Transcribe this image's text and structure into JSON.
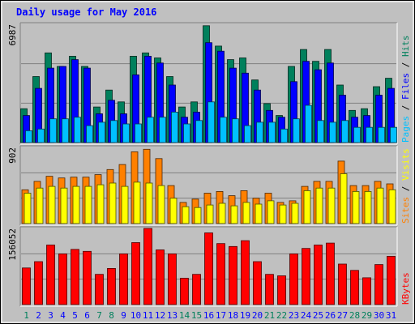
{
  "chart_data": {
    "type": "bar",
    "title": "Daily usage for May 2016",
    "title_color": "#0000ff",
    "colors": {
      "hits": "#00805c",
      "files": "#0000ff",
      "pages": "#00c0ff",
      "visits": "#ff8000",
      "sites": "#ffff00",
      "kbytes": "#ff0000",
      "weekend_label": "#00805c",
      "weekday_label": "#0000ff"
    },
    "days": [
      {
        "label": "1",
        "weekend": true
      },
      {
        "label": "2",
        "weekend": false
      },
      {
        "label": "3",
        "weekend": false
      },
      {
        "label": "4",
        "weekend": false
      },
      {
        "label": "5",
        "weekend": false
      },
      {
        "label": "6",
        "weekend": false
      },
      {
        "label": "7",
        "weekend": true
      },
      {
        "label": "8",
        "weekend": true
      },
      {
        "label": "9",
        "weekend": false
      },
      {
        "label": "10",
        "weekend": false
      },
      {
        "label": "11",
        "weekend": false
      },
      {
        "label": "12",
        "weekend": false
      },
      {
        "label": "13",
        "weekend": false
      },
      {
        "label": "14",
        "weekend": true
      },
      {
        "label": "15",
        "weekend": true
      },
      {
        "label": "16",
        "weekend": false
      },
      {
        "label": "17",
        "weekend": false
      },
      {
        "label": "18",
        "weekend": false
      },
      {
        "label": "19",
        "weekend": false
      },
      {
        "label": "20",
        "weekend": false
      },
      {
        "label": "21",
        "weekend": true
      },
      {
        "label": "22",
        "weekend": true
      },
      {
        "label": "23",
        "weekend": false
      },
      {
        "label": "24",
        "weekend": false
      },
      {
        "label": "25",
        "weekend": false
      },
      {
        "label": "26",
        "weekend": false
      },
      {
        "label": "27",
        "weekend": false
      },
      {
        "label": "28",
        "weekend": true
      },
      {
        "label": "29",
        "weekend": true
      },
      {
        "label": "30",
        "weekend": false
      },
      {
        "label": "31",
        "weekend": false
      }
    ],
    "panels": [
      {
        "id": "hits-files-pages",
        "max_label": "6987",
        "ymax": 6987,
        "legend": [
          "Pages",
          "Files",
          "Hits"
        ],
        "legend_keys": [
          "pages",
          "files",
          "hits"
        ],
        "series": [
          {
            "key": "hits",
            "values": [
              2000,
              3900,
              5300,
              4500,
              5100,
              4500,
              2100,
              3100,
              2400,
              5100,
              5300,
              5000,
              3900,
              2100,
              2400,
              6900,
              5700,
              4900,
              5000,
              3700,
              2300,
              1600,
              4500,
              5500,
              4800,
              5500,
              3400,
              1900,
              2000,
              3300,
              3800
            ]
          },
          {
            "key": "files",
            "values": [
              1600,
              3200,
              4400,
              4500,
              4900,
              4400,
              1700,
              2500,
              1700,
              4000,
              5100,
              4700,
              3400,
              1500,
              1800,
              5900,
              5400,
              4400,
              4100,
              3100,
              1900,
              1500,
              3600,
              4800,
              4300,
              4700,
              2800,
              1500,
              1600,
              2800,
              3200
            ]
          },
          {
            "key": "pages",
            "values": [
              700,
              800,
              1400,
              1400,
              1500,
              1000,
              1200,
              1300,
              1100,
              1100,
              1500,
              1500,
              1800,
              1100,
              1300,
              2400,
              1500,
              1400,
              1000,
              1200,
              1200,
              800,
              1400,
              2200,
              1300,
              1200,
              1300,
              900,
              900,
              900,
              900
            ]
          }
        ]
      },
      {
        "id": "visits-sites",
        "max_label": "902",
        "ymax": 902,
        "legend": [
          "Sites",
          "/",
          "Visits"
        ],
        "legend_keys": [
          "visits",
          "",
          "sites"
        ],
        "series": [
          {
            "key": "visits",
            "values": [
              400,
              500,
              560,
              540,
              550,
              550,
              580,
              640,
              700,
              850,
              880,
              770,
              450,
              250,
              290,
              360,
              380,
              330,
              390,
              300,
              360,
              250,
              270,
              440,
              500,
              500,
              740,
              450,
              450,
              500,
              470
            ]
          },
          {
            "key": "sites",
            "values": [
              360,
              420,
              440,
              420,
              440,
              440,
              460,
              480,
              440,
              490,
              480,
              450,
              300,
              200,
              190,
              220,
              240,
              210,
              250,
              230,
              270,
              220,
              240,
              390,
              420,
              420,
              590,
              380,
              380,
              420,
              400
            ]
          }
        ]
      },
      {
        "id": "kbytes",
        "max_label": "156052",
        "ymax": 156052,
        "legend": [
          "KBytes"
        ],
        "legend_keys": [
          "kbytes"
        ],
        "series": [
          {
            "key": "kbytes",
            "values": [
              75000,
              88000,
              122000,
              104000,
              113000,
              109000,
              62000,
              74000,
              104000,
              127000,
              156000,
              112000,
              104000,
              54000,
              62000,
              147000,
              125000,
              119000,
              131000,
              88000,
              62000,
              59000,
              104000,
              115000,
              122000,
              126000,
              83000,
              70000,
              55000,
              82000,
              99000
            ]
          }
        ]
      }
    ]
  }
}
